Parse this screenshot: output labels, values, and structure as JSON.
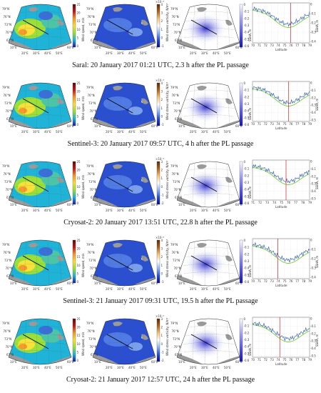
{
  "figure": {
    "rows": [
      {
        "caption": "Saral: 20 January 2017 01:21 UTC, 2.3 h after the PL passage",
        "wind_cbar": {
          "label": "Wind speed, m/s",
          "ticks": [
            "25",
            "20",
            "15",
            "10",
            "5",
            "0"
          ]
        },
        "vort_cbar": {
          "label": "Wind stress vorticity, N/m³",
          "exp": "×10⁻⁶",
          "ticks": [
            "4",
            "3",
            "2",
            "1",
            "0",
            "-1"
          ]
        },
        "ssha_cbar": {
          "label": "SSHA, m",
          "ticks": [
            "0",
            "-0.1",
            "-0.2",
            "-0.3",
            "-0.4",
            "-0.5",
            "-0.6"
          ]
        },
        "profile": {
          "ylabel": "SSHA, m",
          "xlabel": "Latitude",
          "xticks": [
            "70",
            "71",
            "72",
            "73",
            "74",
            "75",
            "76",
            "77",
            "78",
            "79"
          ],
          "yticks": [
            "0",
            "-0.1",
            "-0.2",
            "-0.3",
            "-0.4"
          ],
          "pl_lat": 76.0
        }
      },
      {
        "caption": "Sentinel-3: 20 January 2017 09:57 UTC, 4 h after the PL passage",
        "wind_cbar": {
          "label": "Wind speed, m/s",
          "ticks": [
            "25",
            "20",
            "15",
            "10",
            "5",
            "0"
          ]
        },
        "vort_cbar": {
          "label": "Wind stress vorticity, N/m³",
          "exp": "×10⁻⁶",
          "ticks": [
            "4",
            "3",
            "2",
            "1",
            "0",
            "-1"
          ]
        },
        "ssha_cbar": {
          "label": "SSHA, m",
          "ticks": [
            "0",
            "-0.1",
            "-0.2",
            "-0.3",
            "-0.4",
            "-0.5",
            "-0.6"
          ]
        },
        "profile": {
          "ylabel": "SSHA, m",
          "xlabel": "Latitude",
          "xticks": [
            "70",
            "71",
            "72",
            "73",
            "74",
            "75",
            "76",
            "77",
            "78",
            "79"
          ],
          "yticks": [
            "0",
            "-0.1",
            "-0.2",
            "-0.3",
            "-0.4",
            "-0.5"
          ],
          "pl_lat": 75.7
        }
      },
      {
        "caption": "Cryosat-2: 20 January 2017 13:51 UTC, 22.8 h after the PL passage",
        "wind_cbar": {
          "label": "Wind speed, m/s",
          "ticks": [
            "25",
            "20",
            "15",
            "10",
            "5",
            "0"
          ]
        },
        "vort_cbar": {
          "label": "Wind stress vorticity, N/m³",
          "exp": "×10⁻⁶",
          "ticks": [
            "3",
            "2",
            "1",
            "0",
            "-1",
            "-2"
          ]
        },
        "ssha_cbar": {
          "label": "SSHA, m",
          "ticks": [
            "0",
            "-0.1",
            "-0.2",
            "-0.3",
            "-0.4",
            "-0.5",
            "-0.6"
          ]
        },
        "profile": {
          "ylabel": "SSHA, m",
          "xlabel": "Latitude",
          "xticks": [
            "71",
            "72",
            "73",
            "74",
            "75",
            "76",
            "77",
            "78",
            "79"
          ],
          "yticks": [
            "0",
            "-0.1",
            "-0.2",
            "-0.3",
            "-0.4",
            "-0.5"
          ],
          "pl_lat": 75.7
        }
      },
      {
        "caption": "Sentinel-3: 21 January 2017 09:31 UTC, 19.5 h after the PL passage",
        "wind_cbar": {
          "label": "Wind speed, m/s",
          "ticks": [
            "25",
            "20",
            "15",
            "10",
            "5",
            "0"
          ]
        },
        "vort_cbar": {
          "label": "Wind stress vorticity, N/m³",
          "exp": "×10⁻⁶",
          "ticks": [
            "4",
            "3",
            "2",
            "1",
            "0",
            "-1"
          ]
        },
        "ssha_cbar": {
          "label": "SSHA, m",
          "ticks": [
            "0",
            "-0.1",
            "-0.2",
            "-0.3",
            "-0.4",
            "-0.5",
            "-0.6"
          ]
        },
        "profile": {
          "ylabel": "SSHA, m",
          "xlabel": "Latitude",
          "xticks": [
            "70",
            "71",
            "72",
            "73",
            "74",
            "75",
            "76",
            "77",
            "78",
            "79"
          ],
          "yticks": [
            "0",
            "-0.1",
            "-0.2",
            "-0.3",
            "-0.4"
          ],
          "pl_lat": 74.0
        }
      },
      {
        "caption": "Cryosat-2: 21 January 2017 12:57 UTC, 24 h after the PL passage",
        "wind_cbar": {
          "label": "Wind speed, m/s",
          "ticks": [
            "25",
            "20",
            "15",
            "10",
            "5",
            "0"
          ]
        },
        "vort_cbar": {
          "label": "Wind stress vorticity, N/m³",
          "exp": "×10⁻⁶",
          "ticks": [
            "3",
            "2",
            "1",
            "0",
            "-1",
            "-2"
          ]
        },
        "ssha_cbar": {
          "label": "SSHA, m",
          "ticks": [
            "0",
            "-0.1",
            "-0.2",
            "-0.3",
            "-0.4",
            "-0.5",
            "-0.6"
          ]
        },
        "profile": {
          "ylabel": "SSHA, m",
          "xlabel": "Latitude",
          "xticks": [
            "70",
            "71",
            "72",
            "73",
            "74",
            "75",
            "76",
            "77",
            "78",
            "79"
          ],
          "yticks": [
            "0",
            "-0.1",
            "-0.2",
            "-0.3",
            "-0.4",
            "-0.5"
          ],
          "pl_lat": 74.3
        }
      }
    ],
    "map_labels": {
      "lat": [
        "79°N",
        "76°N",
        "73°N",
        "70°N",
        "67°N"
      ],
      "lon": [
        "10°E",
        "20°E",
        "30°E",
        "40°E",
        "50°E",
        "60°E"
      ]
    },
    "colors": {
      "track": "#1f4fa8",
      "model": "#7ac943",
      "pl_line": "#d2202a",
      "land": "#9a9a9a"
    }
  }
}
